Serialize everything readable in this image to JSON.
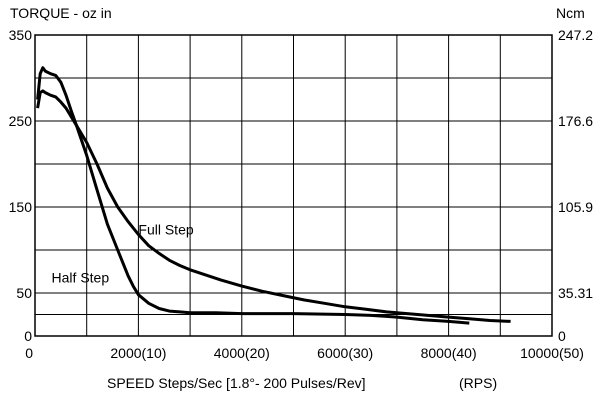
{
  "chart_data": {
    "type": "line",
    "left_axis_label": "TORQUE - oz in",
    "right_axis_label": "Ncm",
    "xlabel": "SPEED Steps/Sec [1.8°- 200 Pulses/Rev]",
    "xlabel_unit": "(RPS)",
    "xlim": [
      0,
      10000
    ],
    "ylim": [
      0,
      350
    ],
    "x_ticks": [
      {
        "value": 0,
        "label": "0"
      },
      {
        "value": 2000,
        "label": "2000(10)"
      },
      {
        "value": 4000,
        "label": "4000(20)"
      },
      {
        "value": 6000,
        "label": "6000(30)"
      },
      {
        "value": 8000,
        "label": "8000(40)"
      },
      {
        "value": 10000,
        "label": "10000(50)"
      }
    ],
    "y_ticks_left": [
      {
        "value": 0,
        "label": "0"
      },
      {
        "value": 50,
        "label": "50"
      },
      {
        "value": 150,
        "label": "150"
      },
      {
        "value": 250,
        "label": "250"
      },
      {
        "value": 350,
        "label": "350"
      }
    ],
    "y_ticks_right": [
      {
        "value": 0,
        "label": "0"
      },
      {
        "value": 50,
        "label": "35.31"
      },
      {
        "value": 150,
        "label": "105.9"
      },
      {
        "value": 250,
        "label": "176.6"
      },
      {
        "value": 350,
        "label": "247.2"
      }
    ],
    "grid_x": [
      0,
      1000,
      2000,
      3000,
      4000,
      5000,
      6000,
      7000,
      8000,
      9000,
      10000
    ],
    "grid_y": [
      0,
      25,
      50,
      100,
      150,
      200,
      250,
      300,
      350
    ],
    "grid": true,
    "series": [
      {
        "name": "Full Step",
        "x": [
          50,
          100,
          150,
          200,
          300,
          400,
          500,
          600,
          700,
          800,
          1000,
          1200,
          1400,
          1600,
          1800,
          2000,
          2200,
          2400,
          2600,
          2800,
          3000,
          3300,
          3600,
          4000,
          4400,
          4800,
          5200,
          5600,
          6000,
          6400,
          6800,
          7200,
          7600,
          8000,
          8400,
          8800,
          9200
        ],
        "y": [
          265,
          283,
          285,
          283,
          280,
          278,
          272,
          265,
          255,
          245,
          225,
          200,
          172,
          150,
          133,
          118,
          105,
          96,
          88,
          82,
          77,
          71,
          65,
          58,
          52,
          47,
          42,
          38,
          34,
          31,
          28,
          26,
          24,
          22,
          20,
          18,
          17
        ]
      },
      {
        "name": "Half Step",
        "x": [
          50,
          100,
          150,
          200,
          300,
          400,
          500,
          600,
          700,
          800,
          1000,
          1200,
          1400,
          1600,
          1800,
          1900,
          2000,
          2200,
          2400,
          2600,
          2800,
          3000,
          3500,
          4000,
          5000,
          6000,
          6500,
          7000,
          7500,
          8000,
          8400
        ],
        "y": [
          275,
          305,
          312,
          308,
          305,
          303,
          295,
          280,
          262,
          245,
          210,
          170,
          130,
          100,
          70,
          58,
          48,
          38,
          32,
          29,
          28,
          27,
          27,
          26,
          26,
          25,
          24,
          22,
          19,
          17,
          15
        ]
      }
    ],
    "annotations": [
      {
        "text": "Full Step",
        "x": 2000,
        "y": 118
      },
      {
        "text": "Half Step",
        "x": 320,
        "y": 62
      }
    ]
  }
}
